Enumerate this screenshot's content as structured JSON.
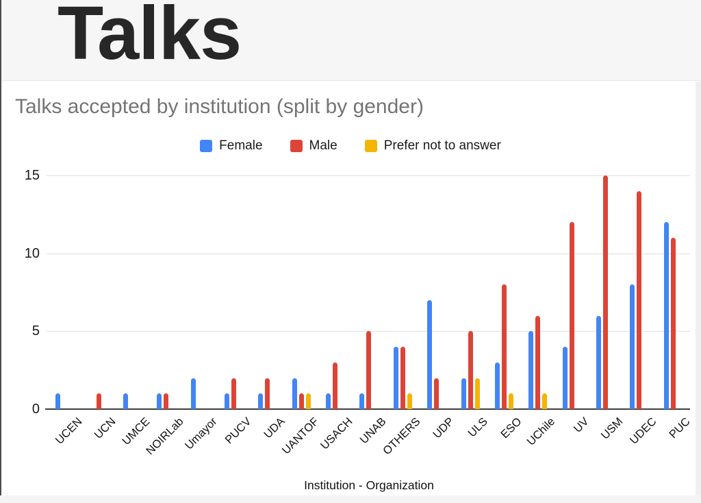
{
  "header": {
    "title": "Talks"
  },
  "chart": {
    "title": "Talks accepted by institution (split by gender)",
    "xlabel": "Institution - Organization"
  },
  "chart_data": {
    "type": "bar",
    "title": "Talks accepted by institution (split by gender)",
    "xlabel": "Institution - Organization",
    "ylabel": "",
    "categories": [
      "UCEN",
      "UCN",
      "UMCE",
      "NOIRLab",
      "Umayor",
      "PUCV",
      "UDA",
      "UANTOF",
      "USACH",
      "UNAB",
      "OTHERS",
      "UDP",
      "ULS",
      "ESO",
      "UChile",
      "UV",
      "USM",
      "UDEC",
      "PUC"
    ],
    "series": [
      {
        "name": "Female",
        "color": "#4285F4",
        "values": [
          1,
          0,
          1,
          1,
          2,
          1,
          1,
          2,
          1,
          1,
          4,
          7,
          2,
          3,
          5,
          4,
          6,
          8,
          12
        ]
      },
      {
        "name": "Male",
        "color": "#DB4437",
        "values": [
          0,
          1,
          0,
          1,
          0,
          2,
          2,
          1,
          3,
          5,
          4,
          2,
          5,
          8,
          6,
          12,
          15,
          14,
          11
        ]
      },
      {
        "name": "Prefer not to answer",
        "color": "#F4B400",
        "values": [
          0,
          0,
          0,
          0,
          0,
          0,
          0,
          1,
          0,
          0,
          1,
          0,
          2,
          1,
          1,
          0,
          0,
          0,
          0
        ]
      }
    ],
    "yticks": [
      0,
      5,
      10,
      15
    ],
    "ylim": [
      0,
      15
    ],
    "grid": true,
    "legend_position": "top"
  }
}
